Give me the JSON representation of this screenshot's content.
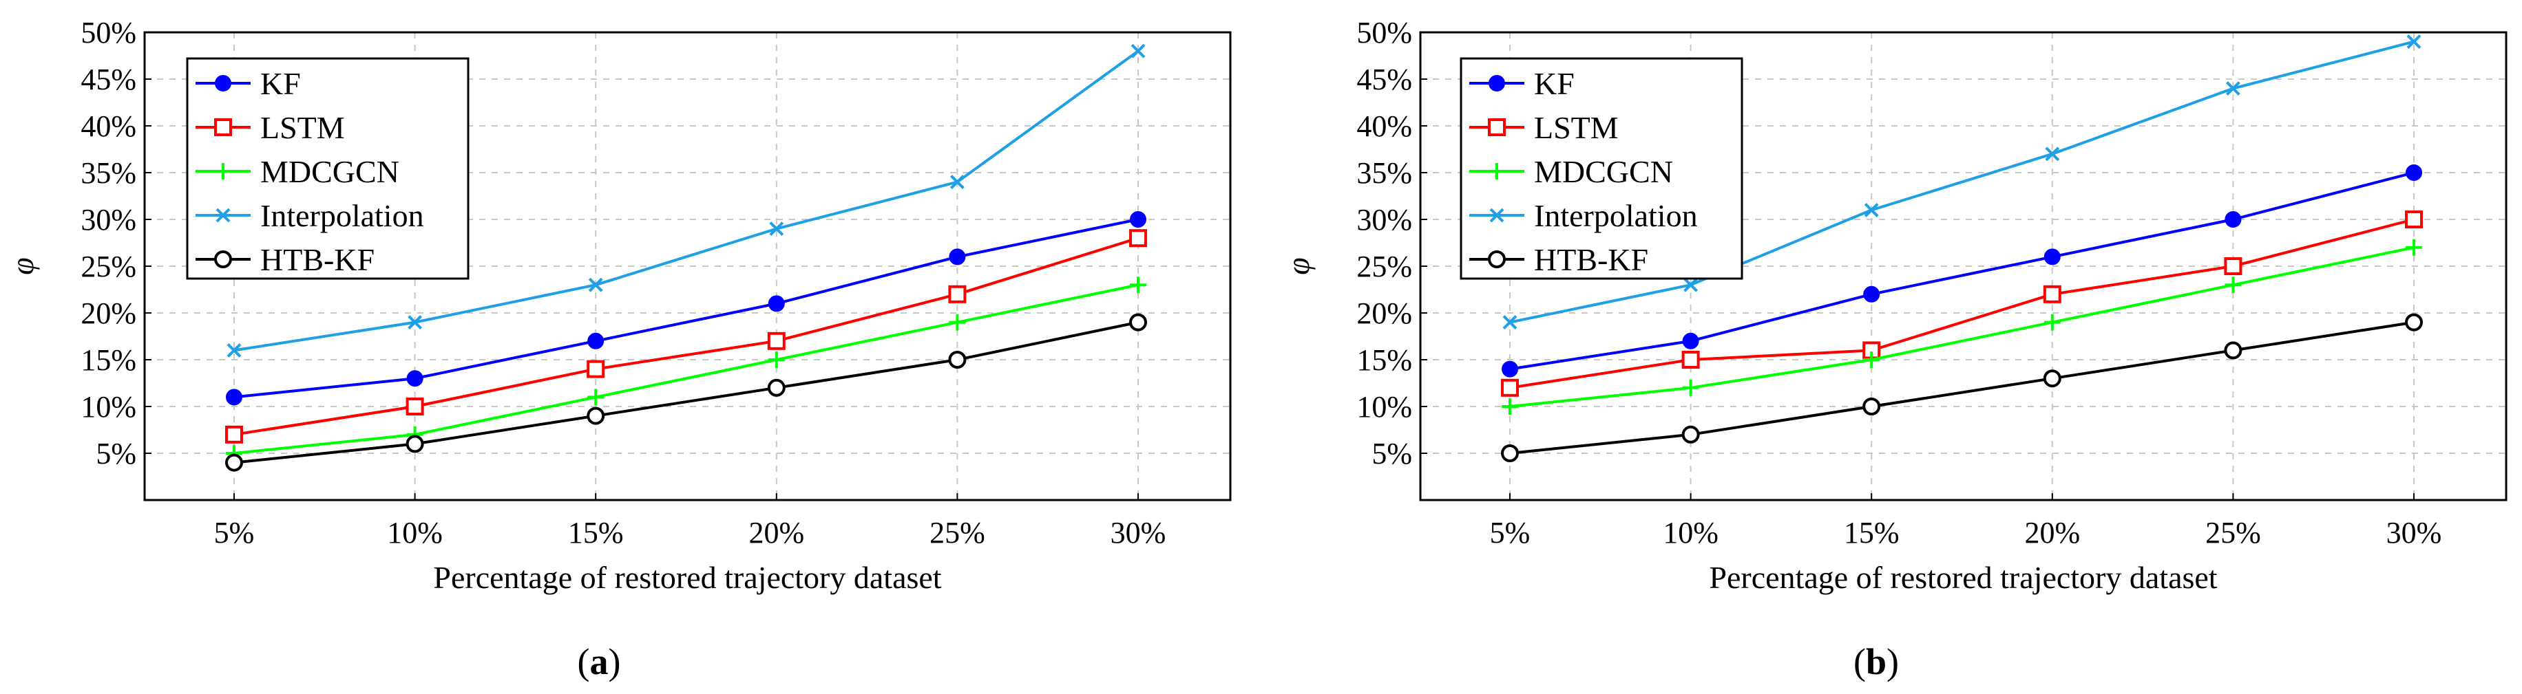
{
  "chart_data": [
    {
      "type": "line",
      "panel_label": "(a)",
      "panel_label_letter": "a",
      "xlabel": "Percentage of restored trajectory dataset",
      "ylabel": "φ",
      "categories": [
        "5%",
        "10%",
        "15%",
        "20%",
        "25%",
        "30%"
      ],
      "ylim": [
        0,
        50
      ],
      "yticks": [
        5,
        10,
        15,
        20,
        25,
        30,
        35,
        40,
        45,
        50
      ],
      "ytick_labels": [
        "5%",
        "10%",
        "15%",
        "20%",
        "25%",
        "30%",
        "35%",
        "40%",
        "45%",
        "50%"
      ],
      "grid": true,
      "legend_position": "top-left",
      "series": [
        {
          "name": "KF",
          "color": "#0000ff",
          "marker": "circle-filled",
          "values": [
            11,
            13,
            17,
            21,
            26,
            30
          ]
        },
        {
          "name": "LSTM",
          "color": "#ff0000",
          "marker": "square-open",
          "values": [
            7,
            10,
            14,
            17,
            22,
            28
          ]
        },
        {
          "name": "MDCGCN",
          "color": "#00ff00",
          "marker": "plus",
          "values": [
            5,
            7,
            11,
            15,
            19,
            23
          ]
        },
        {
          "name": "Interpolation",
          "color": "#1e9fe6",
          "marker": "cross",
          "values": [
            16,
            19,
            23,
            29,
            34,
            48
          ]
        },
        {
          "name": "HTB-KF",
          "color": "#000000",
          "marker": "circle-open",
          "values": [
            4,
            6,
            9,
            12,
            15,
            19
          ]
        }
      ]
    },
    {
      "type": "line",
      "panel_label": "(b)",
      "panel_label_letter": "b",
      "xlabel": "Percentage of restored trajectory dataset",
      "ylabel": "φ",
      "categories": [
        "5%",
        "10%",
        "15%",
        "20%",
        "25%",
        "30%"
      ],
      "ylim": [
        0,
        50
      ],
      "yticks": [
        5,
        10,
        15,
        20,
        25,
        30,
        35,
        40,
        45,
        50
      ],
      "ytick_labels": [
        "5%",
        "10%",
        "15%",
        "20%",
        "25%",
        "30%",
        "35%",
        "40%",
        "45%",
        "50%"
      ],
      "grid": true,
      "legend_position": "top-left",
      "series": [
        {
          "name": "KF",
          "color": "#0000ff",
          "marker": "circle-filled",
          "values": [
            14,
            17,
            22,
            26,
            30,
            35
          ]
        },
        {
          "name": "LSTM",
          "color": "#ff0000",
          "marker": "square-open",
          "values": [
            12,
            15,
            16,
            22,
            25,
            30
          ]
        },
        {
          "name": "MDCGCN",
          "color": "#00ff00",
          "marker": "plus",
          "values": [
            10,
            12,
            15,
            19,
            23,
            27
          ]
        },
        {
          "name": "Interpolation",
          "color": "#1e9fe6",
          "marker": "cross",
          "values": [
            19,
            23,
            31,
            37,
            44,
            49
          ]
        },
        {
          "name": "HTB-KF",
          "color": "#000000",
          "marker": "circle-open",
          "values": [
            5,
            7,
            10,
            13,
            16,
            19
          ]
        }
      ]
    }
  ]
}
